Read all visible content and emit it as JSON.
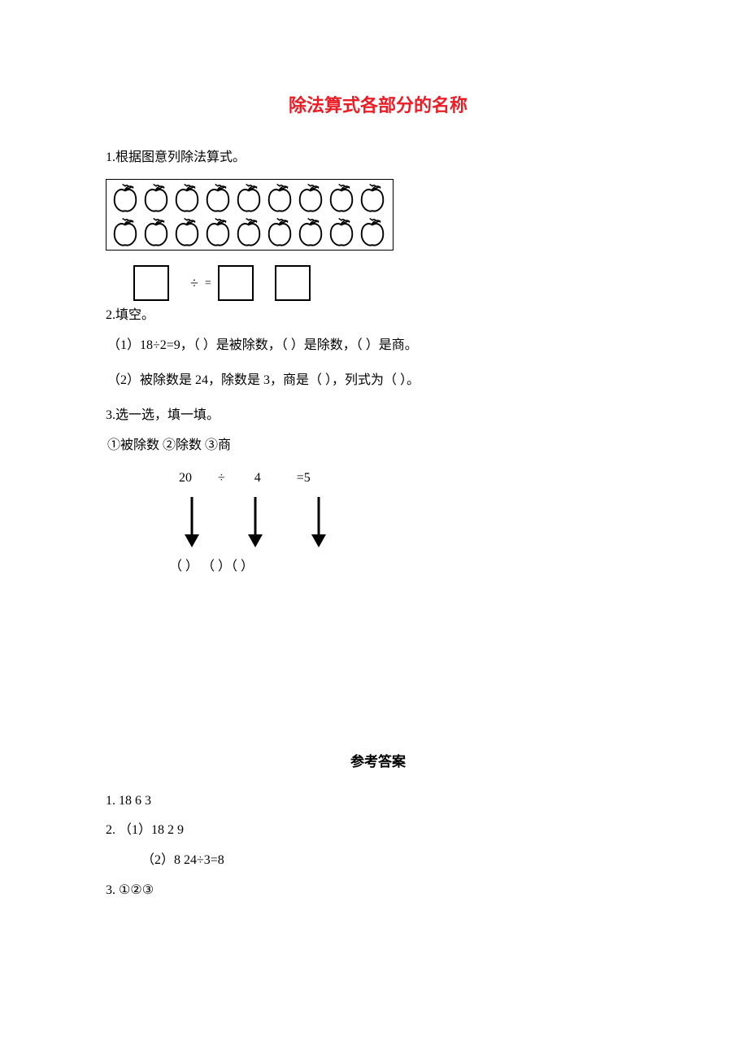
{
  "title": "除法算式各部分的名称",
  "title_color": "#ed1c24",
  "q1": {
    "label": "1.根据图意列除法算式。",
    "apple_rows": 2,
    "apples_per_row": 9,
    "eq_divide": "÷",
    "eq_equals": "="
  },
  "q2": {
    "label": "2.填空。",
    "line1": "（1）18÷2=9，（ ）是被除数，（ ）是除数，（ ）是商。",
    "line2": "（2）被除数是 24，除数是 3，商是（ ），列式为（ ）。"
  },
  "q3": {
    "label": "3.选一选，填一填。",
    "options": "①被除数 ②除数 ③商",
    "eq": {
      "a": "20",
      "div": "÷",
      "b": "4",
      "eq": "=5"
    },
    "blanks": "（ ）   （ ）（ ）"
  },
  "answers": {
    "heading": "参考答案",
    "a1": "1.  18   6 3",
    "a2": "2.  （1）18  2  9",
    "a2b": "（2）8  24÷3=8",
    "a3": "3.   ①②③"
  }
}
